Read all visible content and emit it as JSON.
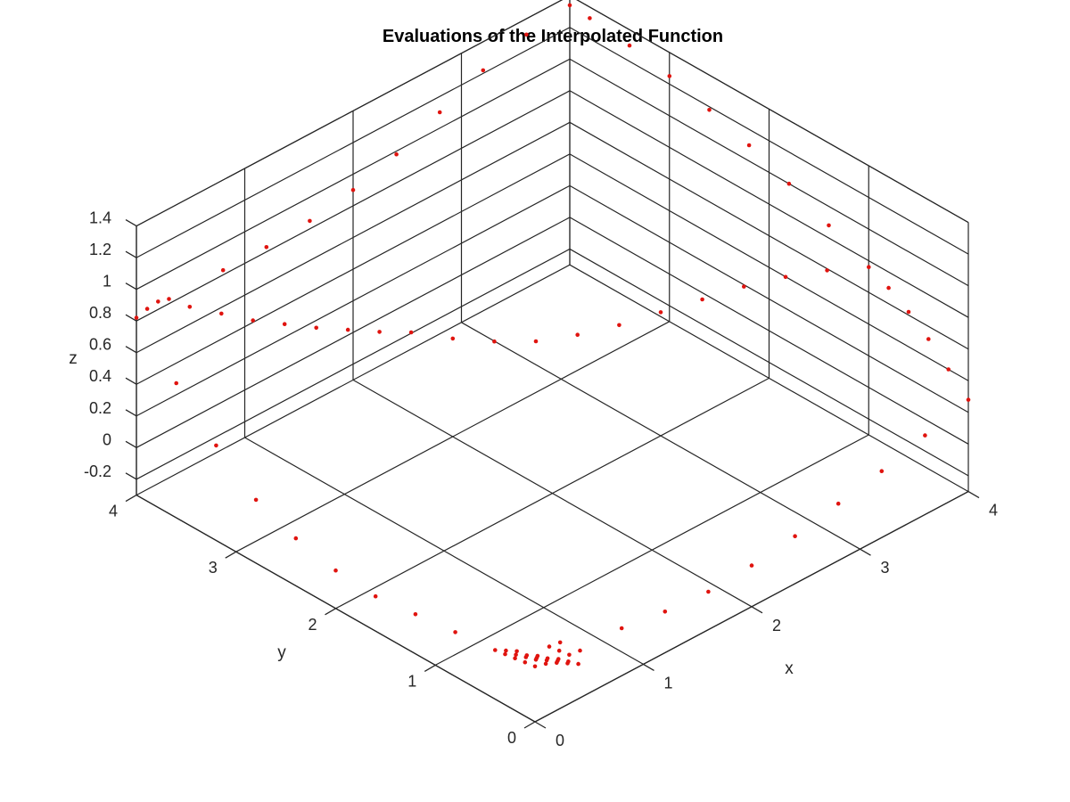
{
  "chart_data": {
    "type": "scatter",
    "title": "Evaluations of the Interpolated Function",
    "xlabel": "x",
    "ylabel": "y",
    "zlabel": "z",
    "xlim": [
      0,
      4
    ],
    "ylim": [
      0,
      4
    ],
    "zlim": [
      -0.3,
      1.4
    ],
    "xticks": [
      "0",
      "1",
      "2",
      "3",
      "4"
    ],
    "yticks": [
      "0",
      "1",
      "2",
      "3",
      "4"
    ],
    "zticks": [
      "-0.2",
      "0",
      "0.2",
      "0.4",
      "0.6",
      "0.8",
      "1",
      "1.2",
      "1.4"
    ],
    "grid": true,
    "marker_color": "#e0140f",
    "sample_spacing": 0.1,
    "series": [
      {
        "points": [
          [
            0.0,
            0.0,
            0.05
          ],
          [
            0.1,
            0.0,
            0.03
          ],
          [
            0.2,
            0.0,
            0.0
          ],
          [
            0.3,
            0.0,
            -0.04
          ],
          [
            0.4,
            0.0,
            -0.08
          ],
          [
            0.0,
            0.1,
            0.04
          ],
          [
            0.1,
            0.1,
            0.02
          ],
          [
            0.2,
            0.1,
            -0.02
          ],
          [
            0.3,
            0.1,
            -0.06
          ],
          [
            0.4,
            0.1,
            -0.1
          ],
          [
            0.0,
            0.2,
            0.03
          ],
          [
            0.1,
            0.2,
            0.0
          ],
          [
            0.2,
            0.2,
            -0.04
          ],
          [
            0.3,
            0.2,
            -0.08
          ],
          [
            0.4,
            0.2,
            -0.12
          ],
          [
            0.0,
            0.3,
            0.02
          ],
          [
            0.1,
            0.3,
            -0.02
          ],
          [
            0.2,
            0.3,
            -0.06
          ],
          [
            0.3,
            0.3,
            -0.1
          ],
          [
            0.0,
            0.4,
            0.01
          ],
          [
            0.1,
            0.4,
            -0.03
          ],
          [
            0.2,
            0.4,
            -0.07
          ],
          [
            0.5,
            0.2,
            -0.13
          ],
          [
            0.6,
            0.2,
            -0.14
          ],
          [
            0.5,
            0.3,
            -0.14
          ],
          [
            0.5,
            0.4,
            -0.15
          ],
          [
            0.6,
            0.4,
            -0.16
          ],
          [
            0.0,
            0.8,
            -0.02
          ],
          [
            0.0,
            1.2,
            -0.05
          ],
          [
            0.0,
            1.6,
            -0.08
          ],
          [
            0.0,
            2.0,
            -0.06
          ],
          [
            0.0,
            2.4,
            0.0
          ],
          [
            0.0,
            2.8,
            0.1
          ],
          [
            0.0,
            3.2,
            0.3
          ],
          [
            0.0,
            3.6,
            0.55
          ],
          [
            0.0,
            4.0,
            0.82
          ],
          [
            0.1,
            4.0,
            0.84
          ],
          [
            0.2,
            4.0,
            0.85
          ],
          [
            0.3,
            4.0,
            0.83
          ],
          [
            0.4,
            3.9,
            0.78
          ],
          [
            0.6,
            3.8,
            0.7
          ],
          [
            0.8,
            3.7,
            0.62
          ],
          [
            1.0,
            3.6,
            0.56
          ],
          [
            1.2,
            3.5,
            0.5
          ],
          [
            1.4,
            3.4,
            0.45
          ],
          [
            1.6,
            3.3,
            0.4
          ],
          [
            1.8,
            3.2,
            0.36
          ],
          [
            2.0,
            3.0,
            0.32
          ],
          [
            2.2,
            2.8,
            0.3
          ],
          [
            2.4,
            2.6,
            0.3
          ],
          [
            2.6,
            2.4,
            0.34
          ],
          [
            2.8,
            2.2,
            0.4
          ],
          [
            3.0,
            2.0,
            0.48
          ],
          [
            3.2,
            1.8,
            0.56
          ],
          [
            3.4,
            1.6,
            0.64
          ],
          [
            3.6,
            1.4,
            0.7
          ],
          [
            3.8,
            1.2,
            0.74
          ],
          [
            4.0,
            1.0,
            0.76
          ],
          [
            4.0,
            1.4,
            0.88
          ],
          [
            4.0,
            1.8,
            1.0
          ],
          [
            4.0,
            2.2,
            1.1
          ],
          [
            4.0,
            2.6,
            1.18
          ],
          [
            4.0,
            3.0,
            1.25
          ],
          [
            4.0,
            3.4,
            1.3
          ],
          [
            4.0,
            3.8,
            1.33
          ],
          [
            4.0,
            4.0,
            1.34
          ],
          [
            3.6,
            4.0,
            1.3
          ],
          [
            3.2,
            4.0,
            1.22
          ],
          [
            2.8,
            4.0,
            1.1
          ],
          [
            2.4,
            4.0,
            0.98
          ],
          [
            2.0,
            4.0,
            0.9
          ],
          [
            1.6,
            4.0,
            0.85
          ],
          [
            1.2,
            4.0,
            0.83
          ],
          [
            0.8,
            4.0,
            0.83
          ],
          [
            4.0,
            0.8,
            0.7
          ],
          [
            4.0,
            0.6,
            0.62
          ],
          [
            4.0,
            0.4,
            0.52
          ],
          [
            4.0,
            0.2,
            0.4
          ],
          [
            4.0,
            0.0,
            0.28
          ],
          [
            3.6,
            0.0,
            0.2
          ],
          [
            3.2,
            0.0,
            0.12
          ],
          [
            2.8,
            0.0,
            0.06
          ],
          [
            2.4,
            0.0,
            0.0
          ],
          [
            2.0,
            0.0,
            -0.04
          ],
          [
            1.6,
            0.0,
            -0.06
          ],
          [
            1.2,
            0.0,
            -0.04
          ],
          [
            0.8,
            0.0,
            0.0
          ]
        ]
      }
    ]
  }
}
